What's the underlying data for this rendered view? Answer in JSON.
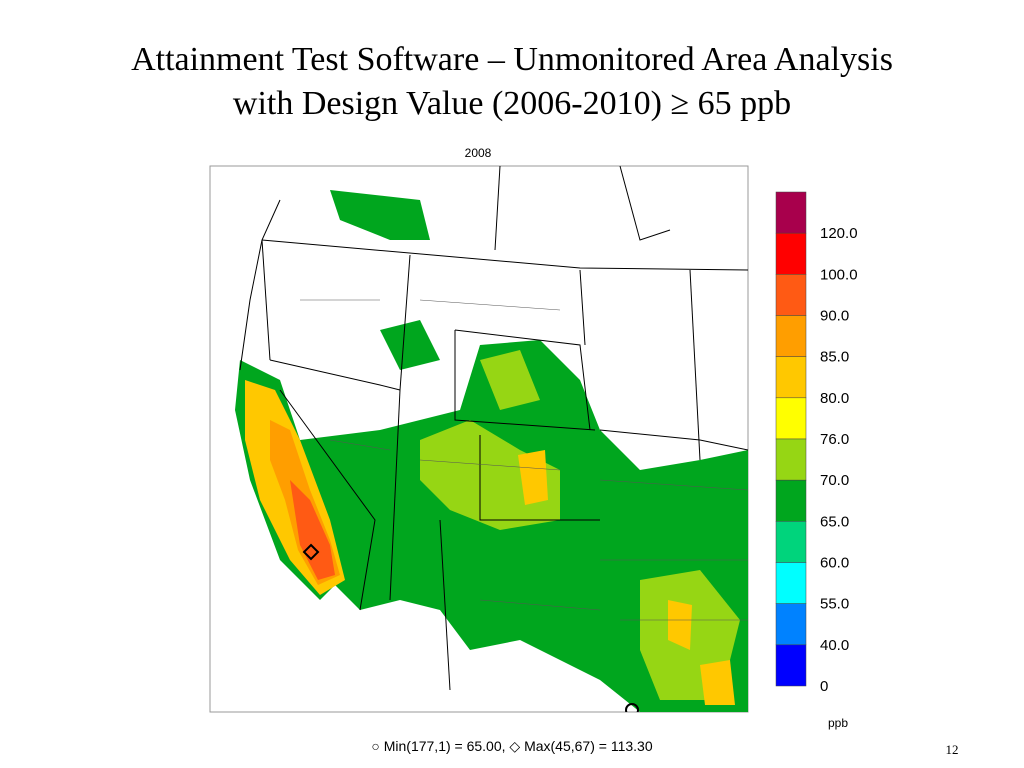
{
  "header": {
    "title_line1": "Attainment Test Software – Unmonitored Area Analysis",
    "title_line2": "with Design Value (2006-2010) ≥ 65 ppb"
  },
  "map": {
    "year": "2008"
  },
  "colorbar": {
    "colors": [
      "#a8004c",
      "#ff0000",
      "#ff5a14",
      "#ff9e00",
      "#ffc800",
      "#ffff00",
      "#96d614",
      "#00a61e",
      "#00d47c",
      "#00ffff",
      "#0082ff",
      "#0000ff"
    ],
    "labels": [
      "120.0",
      "100.0",
      "90.0",
      "85.0",
      "80.0",
      "76.0",
      "70.0",
      "65.0",
      "60.0",
      "55.0",
      "40.0",
      "0"
    ],
    "unit": "ppb"
  },
  "footer": {
    "note": "○ Min(177,1) = 65.00, ◇ Max(45,67) = 113.30",
    "page_number": "12"
  }
}
